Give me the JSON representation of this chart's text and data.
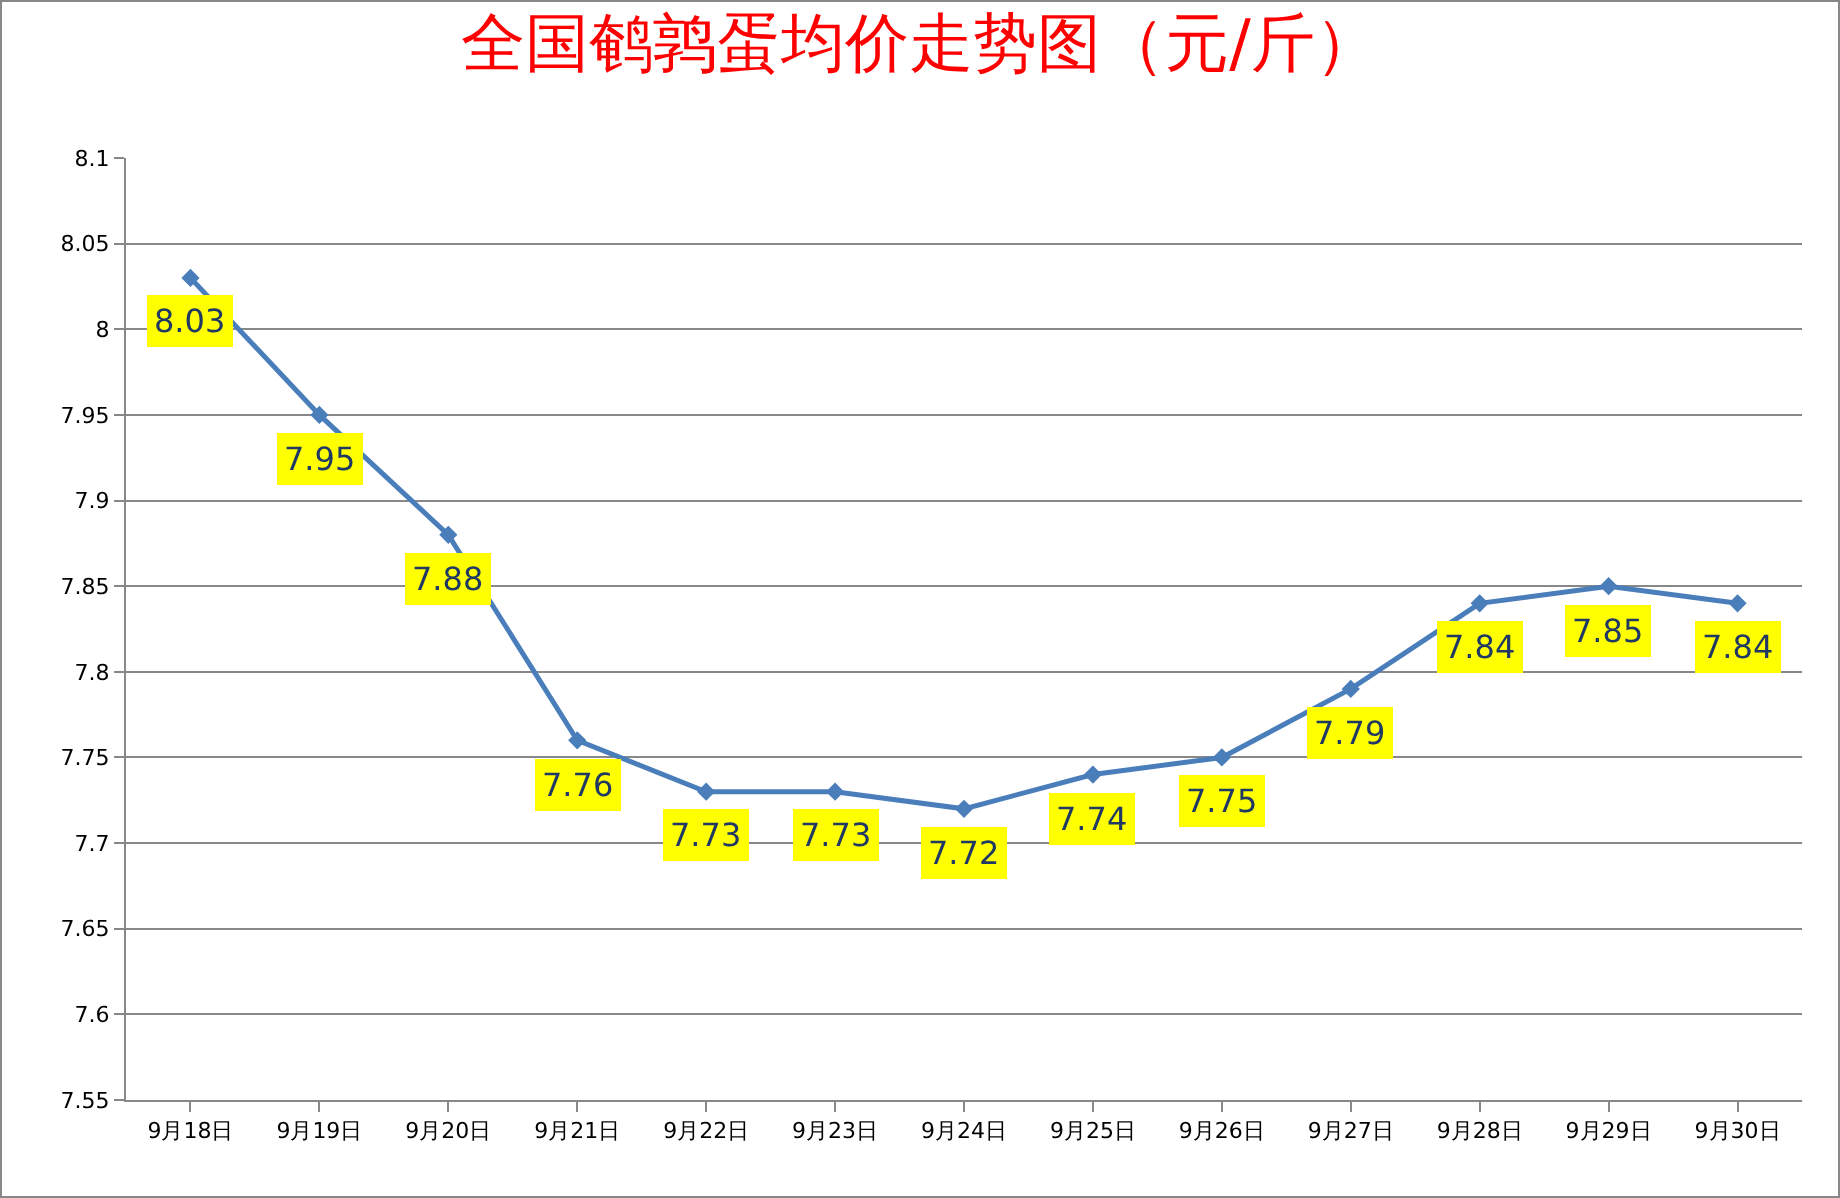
{
  "chart_data": {
    "type": "line",
    "title": "全国鹌鹑蛋均价走势图（元/斤）",
    "categories": [
      "9月18日",
      "9月19日",
      "9月20日",
      "9月21日",
      "9月22日",
      "9月23日",
      "9月24日",
      "9月25日",
      "9月26日",
      "9月27日",
      "9月28日",
      "9月29日",
      "9月30日"
    ],
    "series": [
      {
        "color": "#4a7ebb",
        "values": [
          8.03,
          7.95,
          7.88,
          7.76,
          7.73,
          7.73,
          7.72,
          7.74,
          7.75,
          7.79,
          7.84,
          7.85,
          7.84
        ]
      }
    ],
    "ylim": [
      7.55,
      8.1
    ],
    "yticks": [
      7.55,
      7.6,
      7.65,
      7.7,
      7.75,
      7.8,
      7.85,
      7.9,
      7.95,
      8,
      8.05,
      8.1
    ],
    "grid": "y",
    "marker": "diamond",
    "line_style": "solid",
    "data_labels": true
  }
}
